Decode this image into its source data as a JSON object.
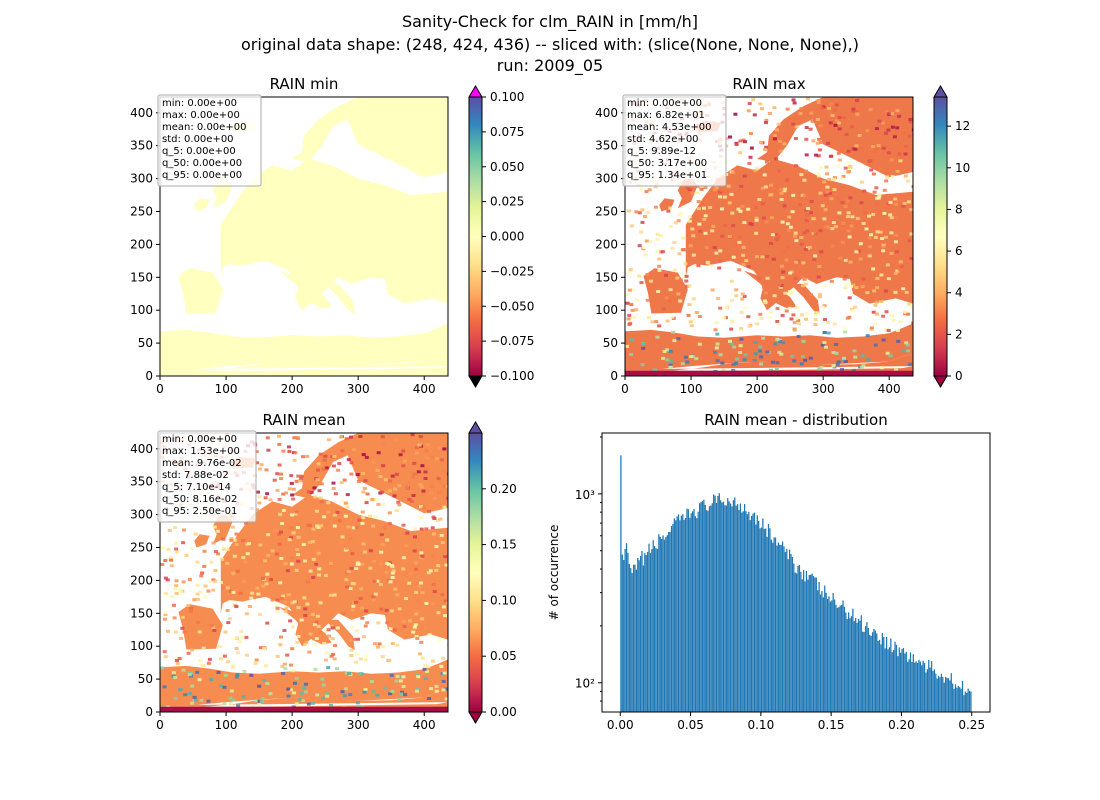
{
  "suptitle": {
    "line1": "Sanity-Check for clm_RAIN in [mm/h]",
    "line2": "original data shape: (248, 424, 436) -- sliced with: (slice(None, None, None),)",
    "line3": "run: 2009_05"
  },
  "chart_data": [
    {
      "type": "heatmap",
      "title": "RAIN min",
      "xlim": [
        0,
        436
      ],
      "ylim": [
        0,
        424
      ],
      "xticks": [
        0,
        100,
        200,
        300,
        400
      ],
      "yticks": [
        0,
        50,
        100,
        150,
        200,
        250,
        300,
        350,
        400
      ],
      "colorbar": {
        "min": -0.1,
        "max": 0.1,
        "ticks": [
          "0.100",
          "0.075",
          "0.050",
          "0.025",
          "0.000",
          "−0.025",
          "−0.050",
          "−0.075",
          "−0.100"
        ],
        "extend_top_color": "#ff00ff",
        "extend_bottom_color": "#000000",
        "colormap": "Spectral"
      },
      "stats": [
        "min: 0.00e+00",
        "max: 0.00e+00",
        "mean: 0.00e+00",
        "std: 0.00e+00",
        "q_5: 0.00e+00",
        "q_50: 0.00e+00",
        "q_95: 0.00e+00"
      ]
    },
    {
      "type": "heatmap",
      "title": "RAIN max",
      "xlim": [
        0,
        436
      ],
      "ylim": [
        0,
        424
      ],
      "xticks": [
        0,
        100,
        200,
        300,
        400
      ],
      "yticks": [
        0,
        50,
        100,
        150,
        200,
        250,
        300,
        350,
        400
      ],
      "colorbar": {
        "min": 0,
        "max": 13.4,
        "ticks": [
          "12",
          "10",
          "8",
          "6",
          "4",
          "2",
          "0"
        ],
        "colormap": "Spectral"
      },
      "stats": [
        "min: 0.00e+00",
        "max: 6.82e+01",
        "mean: 4.53e+00",
        "std: 4.62e+00",
        "q_5: 9.89e-12",
        "q_50: 3.17e+00",
        "q_95: 1.34e+01"
      ]
    },
    {
      "type": "heatmap",
      "title": "RAIN mean",
      "xlim": [
        0,
        436
      ],
      "ylim": [
        0,
        424
      ],
      "xticks": [
        0,
        100,
        200,
        300,
        400
      ],
      "yticks": [
        0,
        50,
        100,
        150,
        200,
        250,
        300,
        350,
        400
      ],
      "colorbar": {
        "min": 0,
        "max": 0.25,
        "ticks": [
          "0.20",
          "0.15",
          "0.10",
          "0.05",
          "0.00"
        ],
        "colormap": "Spectral"
      },
      "stats": [
        "min: 0.00e+00",
        "max: 1.53e+00",
        "mean: 9.76e-02",
        "std: 7.88e-02",
        "q_5: 7.10e-14",
        "q_50: 8.16e-02",
        "q_95: 2.50e-01"
      ]
    },
    {
      "type": "bar",
      "title": "RAIN mean - distribution",
      "ylabel": "# of occurrence",
      "xlabel": "",
      "yscale": "log",
      "xlim": [
        -0.013,
        0.263
      ],
      "ylim": [
        70,
        2100
      ],
      "xticks": [
        "0.00",
        "0.05",
        "0.10",
        "0.15",
        "0.20",
        "0.25"
      ],
      "yticks": [
        {
          "value": 100,
          "label": "10²"
        },
        {
          "value": 1000,
          "label": "10³"
        }
      ],
      "bin_range": [
        0,
        0.25
      ],
      "bar_color": "#1f77b4",
      "knots": [
        [
          0.0,
          1600
        ],
        [
          0.001,
          420
        ],
        [
          0.004,
          520
        ],
        [
          0.008,
          370
        ],
        [
          0.015,
          450
        ],
        [
          0.025,
          540
        ],
        [
          0.035,
          640
        ],
        [
          0.045,
          750
        ],
        [
          0.055,
          830
        ],
        [
          0.065,
          900
        ],
        [
          0.075,
          930
        ],
        [
          0.085,
          890
        ],
        [
          0.095,
          780
        ],
        [
          0.105,
          640
        ],
        [
          0.115,
          520
        ],
        [
          0.125,
          420
        ],
        [
          0.135,
          360
        ],
        [
          0.145,
          300
        ],
        [
          0.155,
          260
        ],
        [
          0.165,
          230
        ],
        [
          0.175,
          200
        ],
        [
          0.185,
          175
        ],
        [
          0.195,
          155
        ],
        [
          0.205,
          140
        ],
        [
          0.215,
          125
        ],
        [
          0.225,
          115
        ],
        [
          0.235,
          105
        ],
        [
          0.245,
          95
        ],
        [
          0.25,
          88
        ]
      ]
    }
  ]
}
